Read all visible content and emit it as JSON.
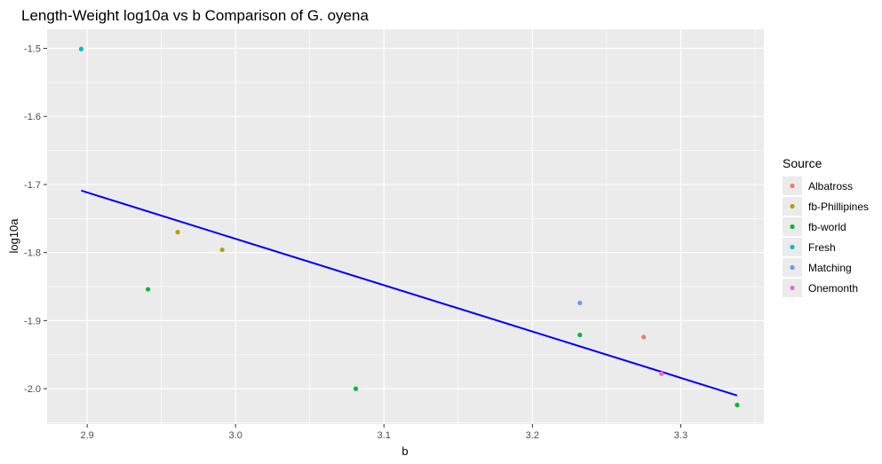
{
  "chart_data": {
    "type": "scatter",
    "title": "Length-Weight log10a vs b Comparison of G. oyena",
    "xlabel": "b",
    "ylabel": "log10a",
    "xlim": [
      2.873,
      3.356
    ],
    "ylim": [
      -2.052,
      -1.472
    ],
    "x_ticks": [
      2.9,
      3.0,
      3.1,
      3.2,
      3.3
    ],
    "x_tick_labels": [
      "2.9",
      "3.0",
      "3.1",
      "3.2",
      "3.3"
    ],
    "y_ticks": [
      -1.5,
      -1.6,
      -1.7,
      -1.8,
      -1.9,
      -2.0
    ],
    "y_tick_labels": [
      "-1.5",
      "-1.6",
      "-1.7",
      "-1.8",
      "-1.9",
      "-2.0"
    ],
    "grid": true,
    "legend": {
      "title": "Source",
      "position": "right",
      "entries": [
        {
          "name": "Albatross",
          "color": "#F8766D"
        },
        {
          "name": "fb-Phillipines",
          "color": "#B79F00"
        },
        {
          "name": "fb-world",
          "color": "#00BA38"
        },
        {
          "name": "Fresh",
          "color": "#00BFC4"
        },
        {
          "name": "Matching",
          "color": "#619CFF"
        },
        {
          "name": "Onemonth",
          "color": "#F564E3"
        }
      ]
    },
    "points": [
      {
        "source": "Fresh",
        "x": 2.896,
        "y": -1.501
      },
      {
        "source": "fb-Phillipines",
        "x": 2.961,
        "y": -1.77
      },
      {
        "source": "fb-Phillipines",
        "x": 2.991,
        "y": -1.796
      },
      {
        "source": "fb-world",
        "x": 2.941,
        "y": -1.854
      },
      {
        "source": "fb-world",
        "x": 3.081,
        "y": -2.0
      },
      {
        "source": "fb-world",
        "x": 3.232,
        "y": -1.921
      },
      {
        "source": "fb-world",
        "x": 3.338,
        "y": -2.024
      },
      {
        "source": "Matching",
        "x": 3.232,
        "y": -1.874
      },
      {
        "source": "Albatross",
        "x": 3.275,
        "y": -1.924
      },
      {
        "source": "Onemonth",
        "x": 3.287,
        "y": -1.978
      }
    ],
    "fit_line": {
      "color": "#0000FF",
      "x": [
        2.896,
        3.338
      ],
      "y": [
        -1.709,
        -2.01
      ]
    }
  }
}
